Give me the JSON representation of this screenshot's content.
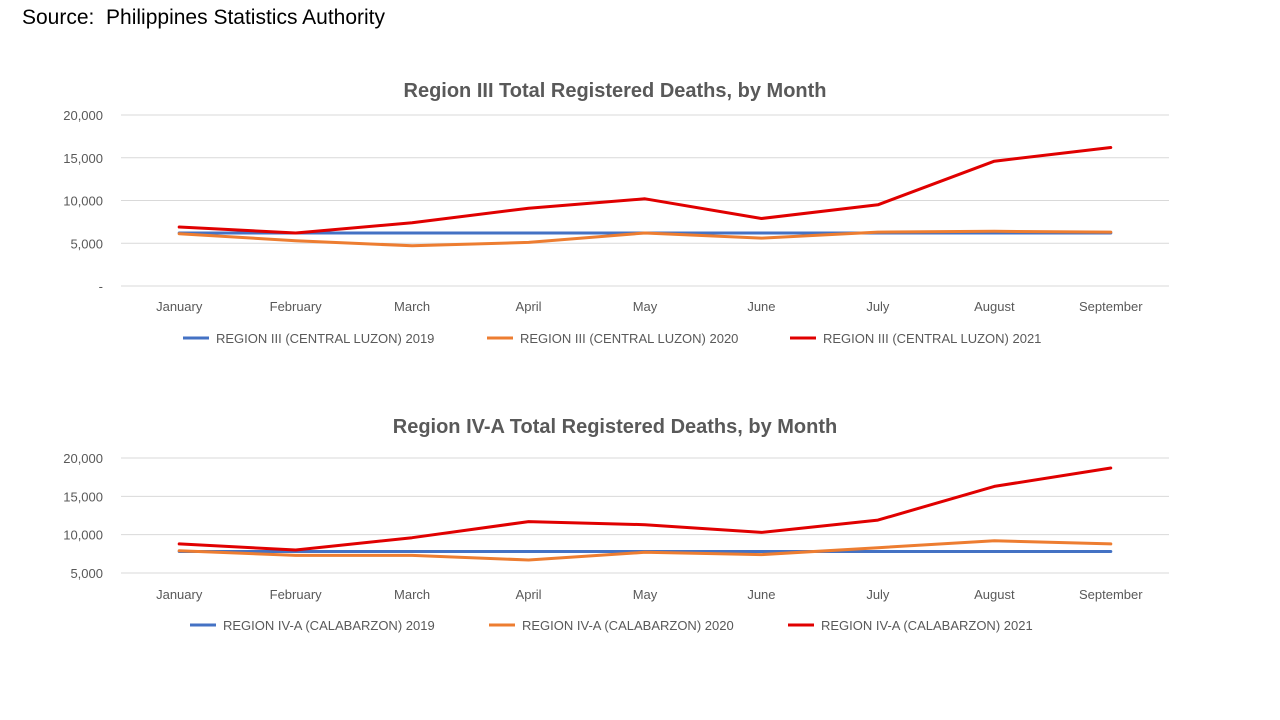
{
  "source_text": "Source:  Philippines Statistics Authority",
  "colors": {
    "s2019": "#4472c4",
    "s2020": "#ed7d31",
    "s2021": "#e00000"
  },
  "chart_data": [
    {
      "type": "line",
      "title": "Region III Total Registered Deaths, by Month",
      "categories": [
        "January",
        "February",
        "March",
        "April",
        "May",
        "June",
        "July",
        "August",
        "September"
      ],
      "ylim": [
        0,
        20000
      ],
      "yticks": [
        {
          "value": 0,
          "label": "-"
        },
        {
          "value": 5000,
          "label": "5,000"
        },
        {
          "value": 10000,
          "label": "10,000"
        },
        {
          "value": 15000,
          "label": "15,000"
        },
        {
          "value": 20000,
          "label": "20,000"
        }
      ],
      "grid": true,
      "legend": "bottom",
      "series": [
        {
          "name": "REGION III (CENTRAL LUZON) 2019",
          "color": "#4472c4",
          "values": [
            6200,
            6200,
            6200,
            6200,
            6200,
            6200,
            6200,
            6200,
            6200
          ]
        },
        {
          "name": "REGION III (CENTRAL LUZON) 2020",
          "color": "#ed7d31",
          "values": [
            6100,
            5300,
            4700,
            5100,
            6200,
            5600,
            6300,
            6400,
            6300
          ]
        },
        {
          "name": "REGION III (CENTRAL LUZON) 2021",
          "color": "#e00000",
          "values": [
            6900,
            6200,
            7400,
            9100,
            10200,
            7900,
            9500,
            14600,
            16200
          ]
        }
      ]
    },
    {
      "type": "line",
      "title": "Region IV-A Total Registered Deaths, by Month",
      "categories": [
        "January",
        "February",
        "March",
        "April",
        "May",
        "June",
        "July",
        "August",
        "September"
      ],
      "ylim": [
        5000,
        20000
      ],
      "yticks": [
        {
          "value": 5000,
          "label": "5,000"
        },
        {
          "value": 10000,
          "label": "10,000"
        },
        {
          "value": 15000,
          "label": "15,000"
        },
        {
          "value": 20000,
          "label": "20,000"
        }
      ],
      "grid": true,
      "legend": "bottom",
      "series": [
        {
          "name": "REGION IV-A (CALABARZON) 2019",
          "color": "#4472c4",
          "values": [
            7800,
            7800,
            7800,
            7800,
            7800,
            7800,
            7800,
            7800,
            7800
          ]
        },
        {
          "name": "REGION IV-A (CALABARZON) 2020",
          "color": "#ed7d31",
          "values": [
            7900,
            7300,
            7300,
            6700,
            7700,
            7400,
            8300,
            9200,
            8800
          ]
        },
        {
          "name": "REGION IV-A (CALABARZON) 2021",
          "color": "#e00000",
          "values": [
            8800,
            8000,
            9600,
            11700,
            11300,
            10300,
            11900,
            16300,
            18700
          ]
        }
      ]
    }
  ]
}
